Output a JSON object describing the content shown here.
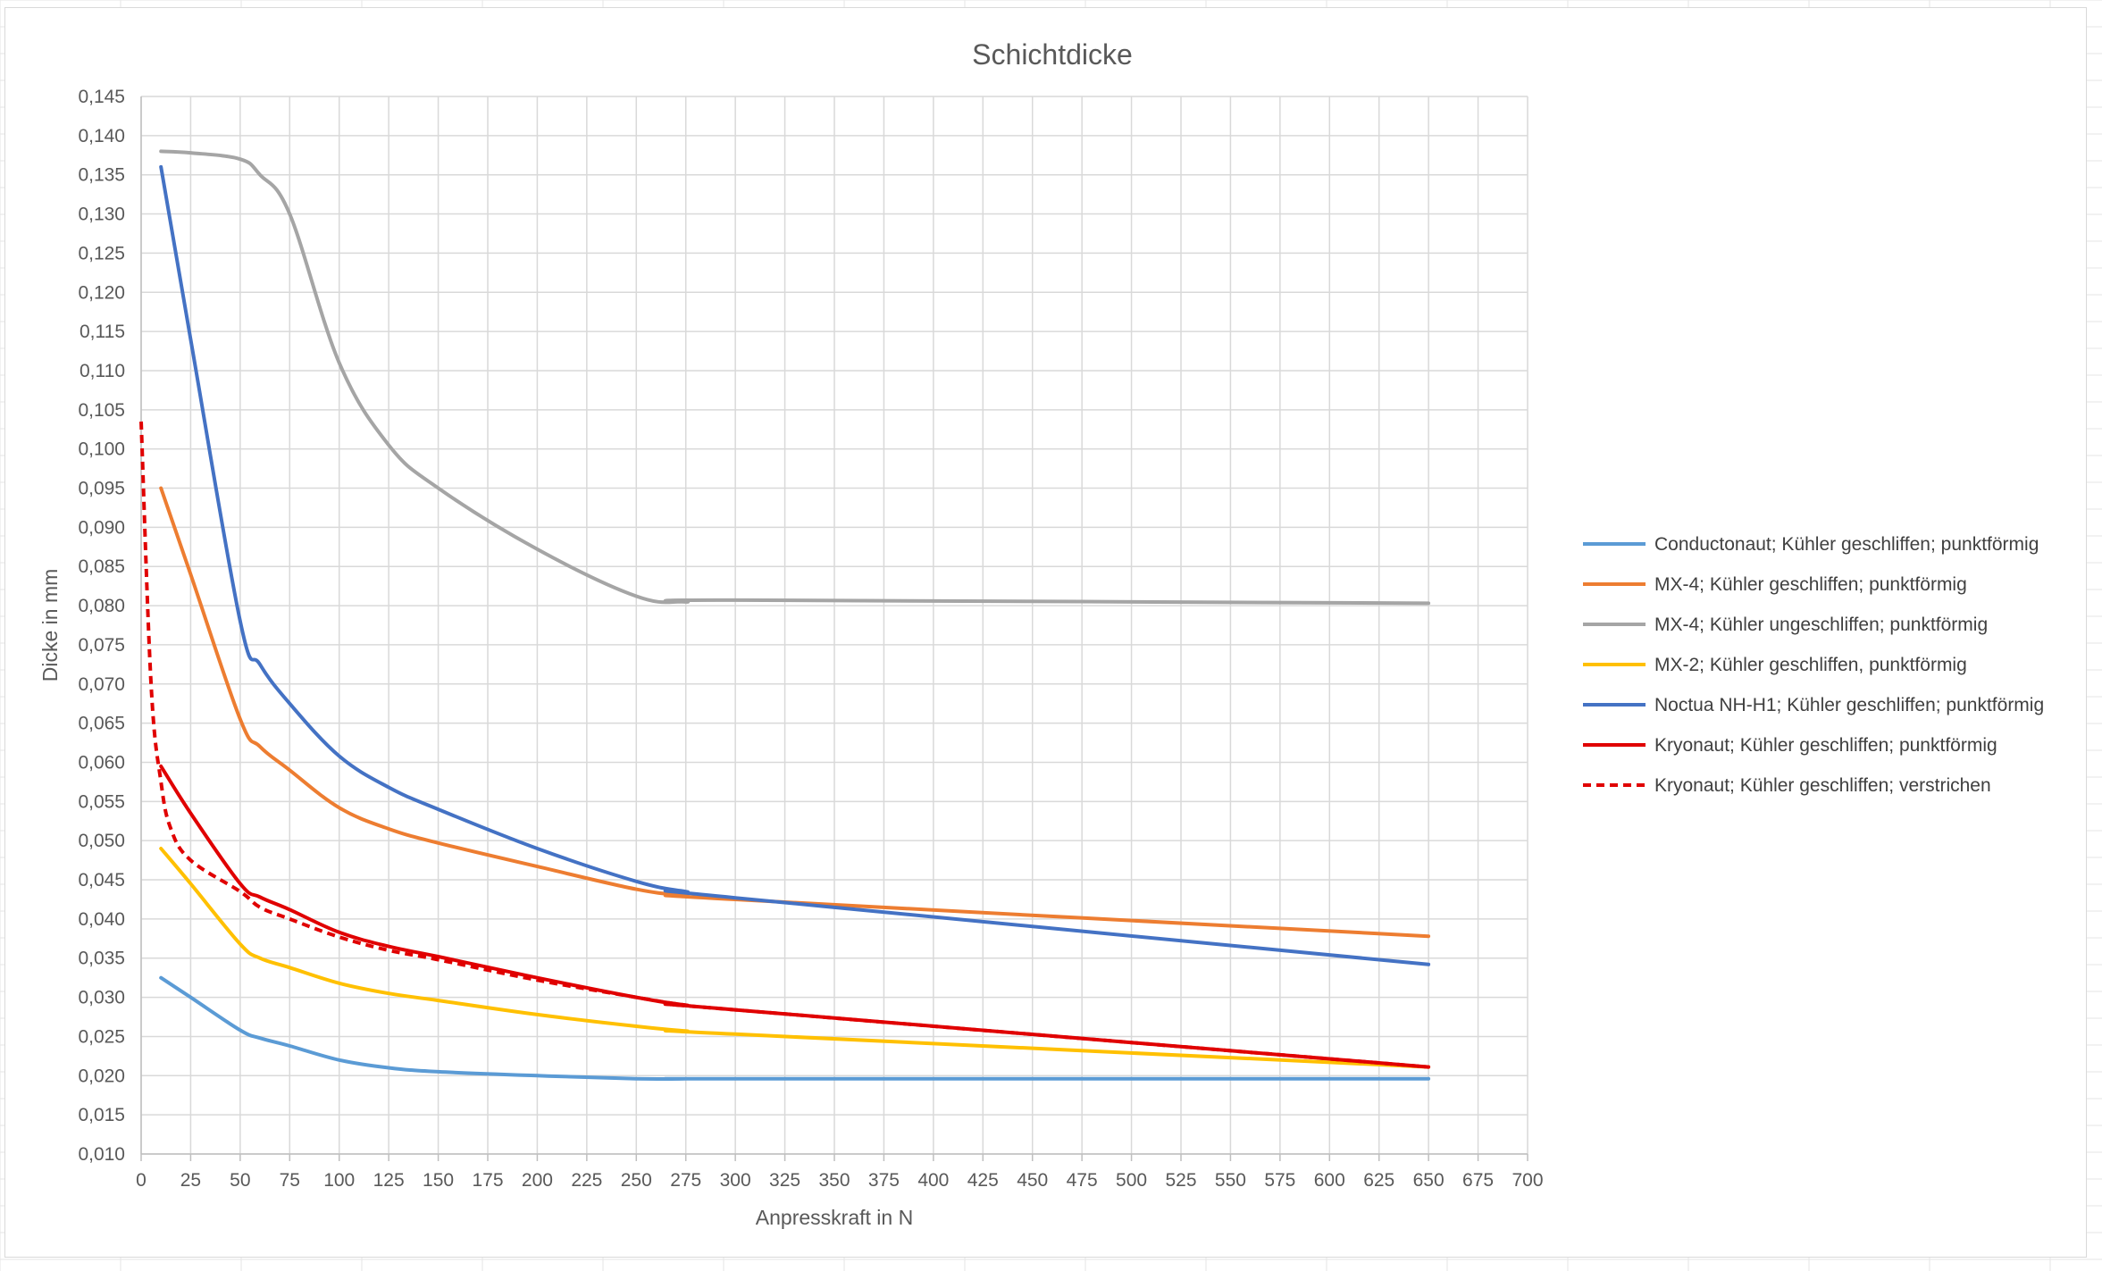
{
  "chart_data": {
    "type": "line",
    "title": "Schichtdicke",
    "xlabel": "Anpresskraft in N",
    "ylabel": "Dicke in mm",
    "xlim": [
      0,
      700
    ],
    "ylim": [
      0.01,
      0.145
    ],
    "x_ticks": [
      "0",
      "25",
      "50",
      "75",
      "100",
      "125",
      "150",
      "175",
      "200",
      "225",
      "250",
      "275",
      "300",
      "325",
      "350",
      "375",
      "400",
      "425",
      "450",
      "475",
      "500",
      "525",
      "550",
      "575",
      "600",
      "625",
      "650",
      "675",
      "700"
    ],
    "y_ticks": [
      "0,010",
      "0,015",
      "0,020",
      "0,025",
      "0,030",
      "0,035",
      "0,040",
      "0,045",
      "0,050",
      "0,055",
      "0,060",
      "0,065",
      "0,070",
      "0,075",
      "0,080",
      "0,085",
      "0,090",
      "0,095",
      "0,100",
      "0,105",
      "0,110",
      "0,115",
      "0,120",
      "0,125",
      "0,130",
      "0,135",
      "0,140",
      "0,145"
    ],
    "grid": true,
    "legend_position": "right",
    "series": [
      {
        "name": "Conductonaut; Kühler geschliffen; punktförmig",
        "color": "#5b9bd5",
        "dash": "solid",
        "x": [
          10,
          25,
          50,
          60,
          75,
          100,
          125,
          150,
          200,
          250,
          275,
          300,
          650
        ],
        "y": [
          0.0325,
          0.03,
          0.0258,
          0.0248,
          0.0238,
          0.022,
          0.021,
          0.0205,
          0.02,
          0.0196,
          0.0196,
          0.0196,
          0.0196
        ]
      },
      {
        "name": "MX-4; Kühler geschliffen; punktförmig",
        "color": "#ed7d31",
        "dash": "solid",
        "x": [
          10,
          25,
          50,
          60,
          75,
          100,
          125,
          150,
          200,
          250,
          275,
          300,
          650
        ],
        "y": [
          0.095,
          0.084,
          0.0655,
          0.062,
          0.059,
          0.0542,
          0.0515,
          0.0497,
          0.0467,
          0.0438,
          0.043,
          0.0425,
          0.0378
        ]
      },
      {
        "name": "MX-4; Kühler ungeschliffen; punktförmig",
        "color": "#a5a5a5",
        "dash": "solid",
        "x": [
          10,
          25,
          50,
          60,
          75,
          100,
          125,
          150,
          200,
          250,
          275,
          300,
          650
        ],
        "y": [
          0.138,
          0.1378,
          0.137,
          0.135,
          0.13,
          0.111,
          0.1005,
          0.095,
          0.0872,
          0.0812,
          0.0805,
          0.0807,
          0.0803
        ]
      },
      {
        "name": "MX-2; Kühler geschliffen, punktförmig",
        "color": "#ffc000",
        "dash": "solid",
        "x": [
          10,
          25,
          50,
          60,
          75,
          100,
          125,
          150,
          200,
          250,
          275,
          300,
          650
        ],
        "y": [
          0.049,
          0.0445,
          0.0368,
          0.035,
          0.0338,
          0.0318,
          0.0305,
          0.0296,
          0.0278,
          0.0263,
          0.0257,
          0.0253,
          0.0211
        ]
      },
      {
        "name": "Noctua NH-H1; Kühler geschliffen; punktförmig",
        "color": "#4472c4",
        "dash": "solid",
        "x": [
          10,
          25,
          50,
          60,
          75,
          100,
          125,
          150,
          200,
          250,
          275,
          300,
          650
        ],
        "y": [
          0.136,
          0.114,
          0.078,
          0.0725,
          0.0675,
          0.0608,
          0.0568,
          0.054,
          0.049,
          0.0448,
          0.0435,
          0.0427,
          0.0342
        ]
      },
      {
        "name": "Kryonaut; Kühler geschliffen; punktförmig",
        "color": "#e00000",
        "dash": "solid",
        "x": [
          10,
          25,
          50,
          60,
          75,
          100,
          125,
          150,
          200,
          250,
          275,
          300,
          650
        ],
        "y": [
          0.0595,
          0.0535,
          0.0445,
          0.0428,
          0.0412,
          0.0383,
          0.0365,
          0.0352,
          0.0325,
          0.03,
          0.029,
          0.0284,
          0.0211
        ]
      },
      {
        "name": "Kryonaut; Kühler geschliffen; verstrichen",
        "color": "#e00000",
        "dash": "dashed",
        "x": [
          0,
          5,
          10,
          15,
          25,
          50,
          60,
          75,
          100,
          125,
          150,
          200,
          250,
          275,
          300,
          650
        ],
        "y": [
          0.1035,
          0.07,
          0.0575,
          0.0515,
          0.0475,
          0.0435,
          0.0415,
          0.04,
          0.0377,
          0.036,
          0.0348,
          0.0322,
          0.03,
          0.029,
          0.0284,
          0.0211
        ]
      }
    ]
  }
}
